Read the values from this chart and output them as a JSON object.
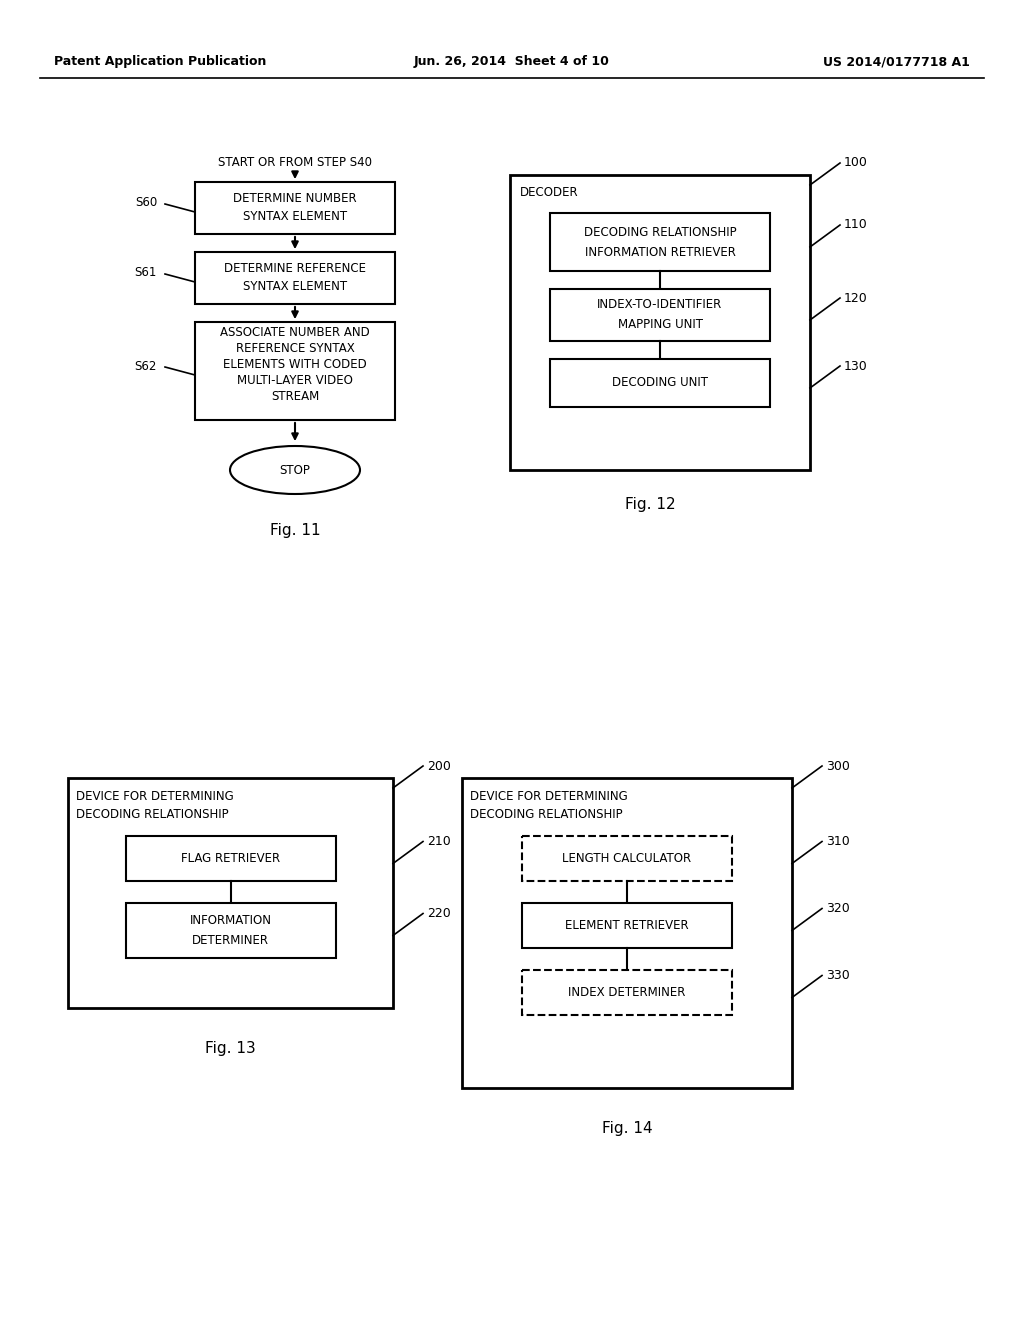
{
  "bg_color": "#ffffff",
  "header_left": "Patent Application Publication",
  "header_center": "Jun. 26, 2014  Sheet 4 of 10",
  "header_right": "US 2014/0177718 A1",
  "fig11_label": "Fig. 11",
  "fig12_label": "Fig. 12",
  "fig13_label": "Fig. 13",
  "fig14_label": "Fig. 14",
  "line_color": "#000000",
  "text_color": "#000000"
}
